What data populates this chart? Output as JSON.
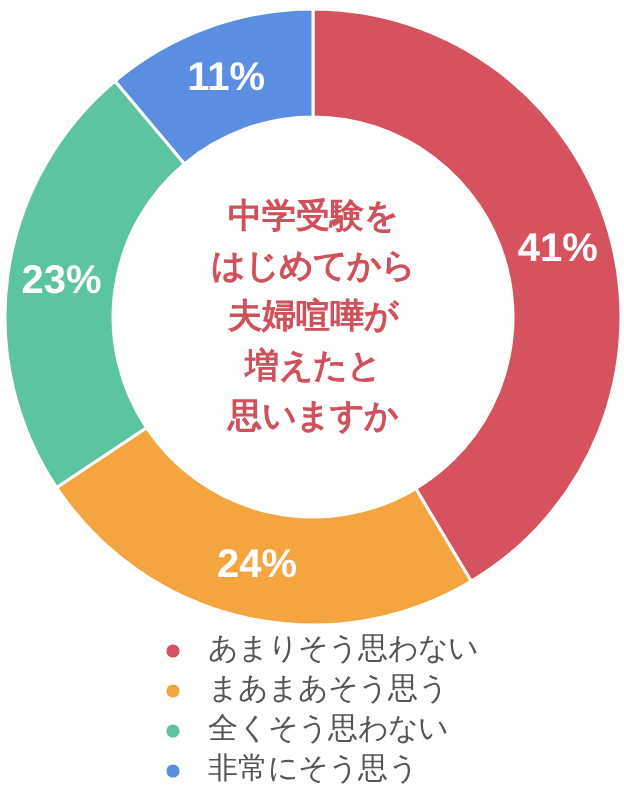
{
  "chart_data": {
    "type": "donut",
    "title": "中学受験をはじめてから夫婦喧嘩が増えたと思いますか",
    "categories": [
      "あまりそう思わない",
      "まあまあそう思う",
      "全くそう思わない",
      "非常にそう思う"
    ],
    "values": [
      41,
      24,
      23,
      11
    ],
    "colors": [
      "#d6525e",
      "#f4a540",
      "#5dc4a2",
      "#5b8ee0"
    ],
    "value_labels": [
      "41%",
      "24%",
      "23%",
      "11%"
    ],
    "legend": "bottom"
  }
}
